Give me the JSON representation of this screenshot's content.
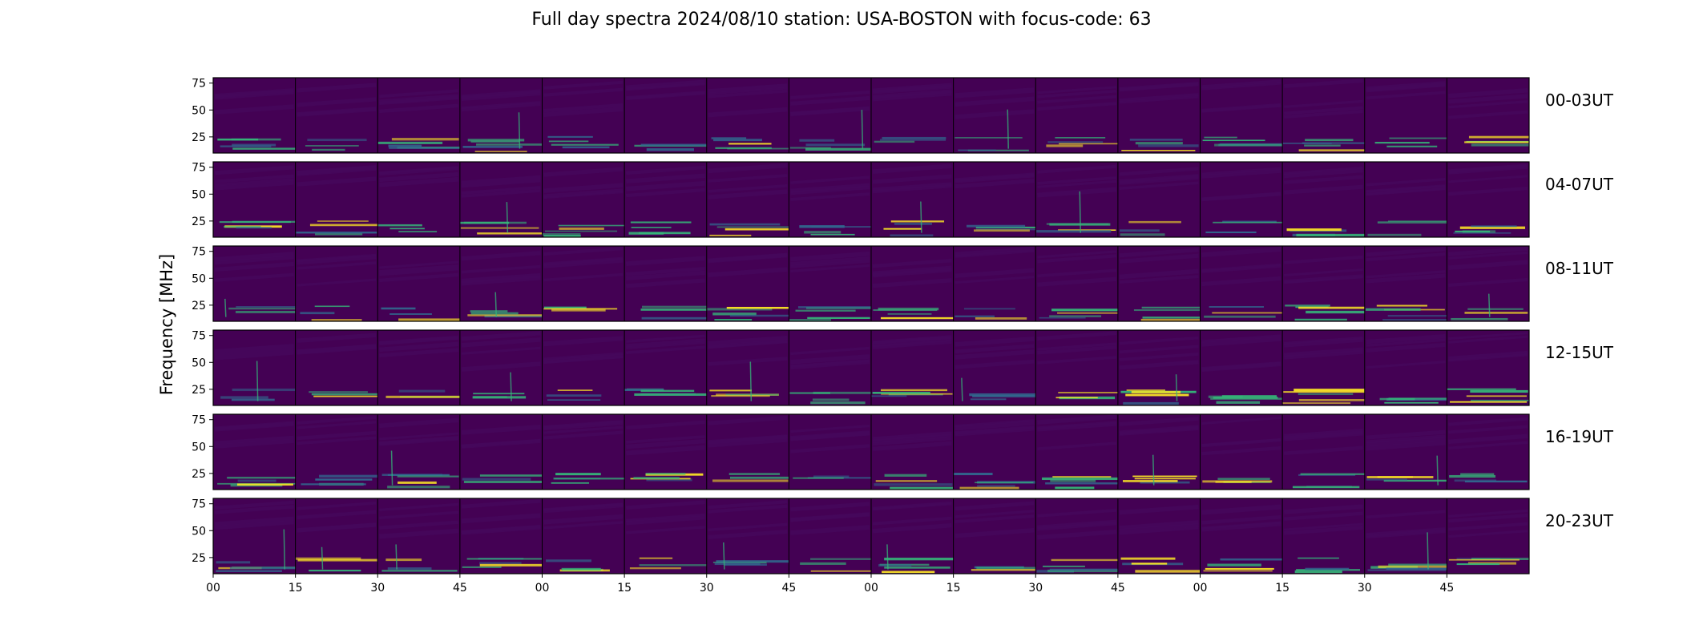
{
  "title": "Full day spectra 2024/08/10 station: USA-BOSTON with focus-code: 63",
  "chart_data": {
    "type": "heatmap",
    "title": "Full day spectra 2024/08/10 station: USA-BOSTON with focus-code: 63",
    "ylabel": "Frequency [MHz]",
    "xlabel": "",
    "colormap": "viridis",
    "rows": [
      "00-03UT",
      "04-07UT",
      "08-11UT",
      "12-15UT",
      "16-19UT",
      "20-23UT"
    ],
    "panels_per_row": 16,
    "panel_minutes": 15,
    "ylim": [
      10,
      80
    ],
    "yticks": [
      25,
      50,
      75
    ],
    "ytick_labels": [
      "25",
      "50",
      "75"
    ],
    "xtick_labels": [
      "00",
      "15",
      "30",
      "45",
      "00",
      "15",
      "30",
      "45",
      "00",
      "15",
      "30",
      "45",
      "00",
      "15",
      "30",
      "45"
    ],
    "colors": {
      "background": "#440154",
      "low": "#46085c",
      "mid": "#31688e",
      "high": "#35b779",
      "peak": "#fde725"
    }
  }
}
